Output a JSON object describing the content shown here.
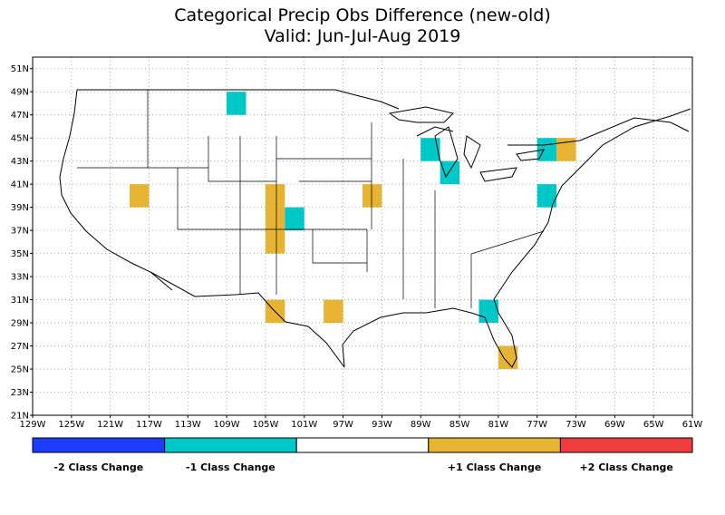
{
  "title": "Categorical Precip Obs Difference (new-old)",
  "subtitle": "Valid: Jun-Jul-Aug 2019",
  "map": {
    "lon_range": [
      -129,
      -61
    ],
    "lat_range": [
      21,
      52
    ],
    "lat_labels": [
      "51N",
      "49N",
      "47N",
      "45N",
      "43N",
      "41N",
      "39N",
      "37N",
      "35N",
      "33N",
      "31N",
      "29N",
      "27N",
      "25N",
      "23N",
      "21N"
    ],
    "lon_labels": [
      "129W",
      "125W",
      "121W",
      "117W",
      "113W",
      "109W",
      "105W",
      "101W",
      "97W",
      "93W",
      "89W",
      "85W",
      "81W",
      "77W",
      "73W",
      "69W",
      "65W",
      "61W"
    ],
    "grid": true,
    "colors": {
      "minus2": "#1e3cff",
      "minus1": "#00c8c8",
      "zero": "#ffffff",
      "plus1": "#e6b432",
      "plus2": "#f03c3c"
    },
    "cells": [
      {
        "lon": -108,
        "lat": 48,
        "cls": -1
      },
      {
        "lon": -118,
        "lat": 40,
        "cls": 1
      },
      {
        "lon": -104,
        "lat": 40,
        "cls": 1
      },
      {
        "lon": -104,
        "lat": 38,
        "cls": 1
      },
      {
        "lon": -104,
        "lat": 36,
        "cls": 1
      },
      {
        "lon": -102,
        "lat": 38,
        "cls": -1
      },
      {
        "lon": -94,
        "lat": 40,
        "cls": 1
      },
      {
        "lon": -88,
        "lat": 44,
        "cls": -1
      },
      {
        "lon": -86,
        "lat": 42,
        "cls": -1
      },
      {
        "lon": -76,
        "lat": 44,
        "cls": -1
      },
      {
        "lon": -74,
        "lat": 44,
        "cls": 1
      },
      {
        "lon": -76,
        "lat": 40,
        "cls": -1
      },
      {
        "lon": -104,
        "lat": 30,
        "cls": 1
      },
      {
        "lon": -98,
        "lat": 30,
        "cls": 1
      },
      {
        "lon": -82,
        "lat": 30,
        "cls": -1
      },
      {
        "lon": -80,
        "lat": 26,
        "cls": 1
      }
    ]
  },
  "legend": [
    {
      "label": "-2 Class Change",
      "color": "#1e3cff"
    },
    {
      "label": "-1 Class Change",
      "color": "#00c8c8"
    },
    {
      "label": "",
      "color": "#ffffff"
    },
    {
      "label": "+1 Class Change",
      "color": "#e6b432"
    },
    {
      "label": "+2 Class Change",
      "color": "#f03c3c"
    }
  ]
}
